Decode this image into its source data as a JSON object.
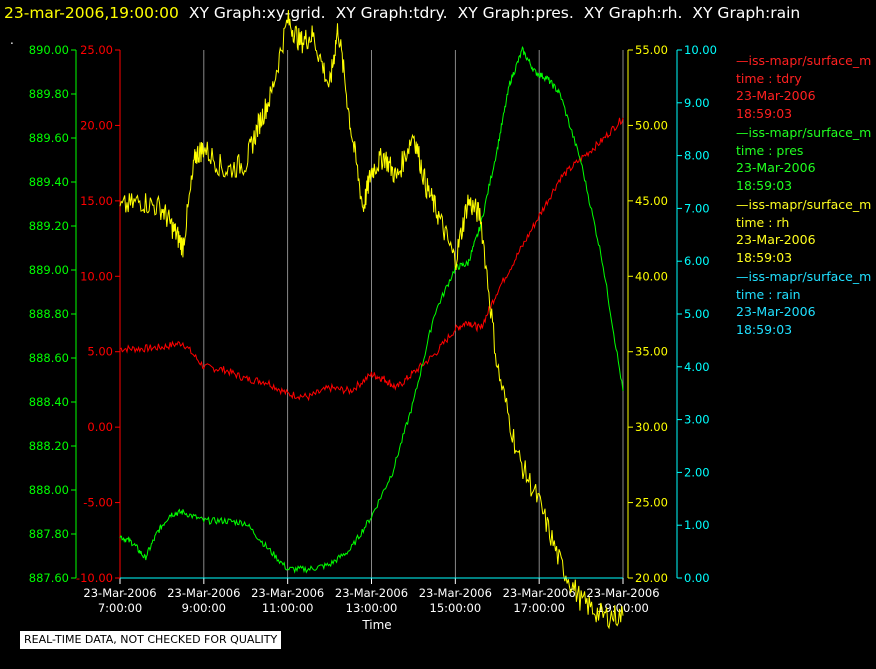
{
  "header": {
    "timestamp": "23-mar-2006,19:00:00",
    "graphs": [
      "XY Graph:xy-grid.",
      "XY Graph:tdry.",
      "XY Graph:pres.",
      "XY Graph:rh.",
      "XY Graph:rain"
    ],
    "dot": "."
  },
  "colors": {
    "tdry": "#ff0000",
    "pres": "#00ff00",
    "rh": "#ffff00",
    "rain": "#00ffff",
    "grid": "#ffffff"
  },
  "legend": [
    {
      "name": "iss-mapr/surface_m",
      "field": "time : tdry",
      "date": "23-Mar-2006",
      "time": "18:59:03",
      "color": "#ff2020"
    },
    {
      "name": "iss-mapr/surface_m",
      "field": "time : pres",
      "date": "23-Mar-2006",
      "time": "18:59:03",
      "color": "#20ff20"
    },
    {
      "name": "iss-mapr/surface_m",
      "field": "time : rh",
      "date": "23-Mar-2006",
      "time": "18:59:03",
      "color": "#ffff20"
    },
    {
      "name": "iss-mapr/surface_m",
      "field": "time : rain",
      "date": "23-Mar-2006",
      "time": "18:59:03",
      "color": "#20e0ff"
    }
  ],
  "quality_note": "REAL-TIME DATA, NOT CHECKED FOR QUALITY",
  "chart_data": {
    "type": "line",
    "xlabel": "Time",
    "x_ticks": [
      {
        "date": "23-Mar-2006",
        "time": "7:00:00",
        "h": 7
      },
      {
        "date": "23-Mar-2006",
        "time": "9:00:00",
        "h": 9
      },
      {
        "date": "23-Mar-2006",
        "time": "11:00:00",
        "h": 11
      },
      {
        "date": "23-Mar-2006",
        "time": "13:00:00",
        "h": 13
      },
      {
        "date": "23-Mar-2006",
        "time": "15:00:00",
        "h": 15
      },
      {
        "date": "23-Mar-2006",
        "time": "17:00:00",
        "h": 17
      },
      {
        "date": "23-Mar-2006",
        "time": "19:00:00",
        "h": 19
      }
    ],
    "xlim": [
      7,
      19
    ],
    "grid": true,
    "axes": {
      "pres": {
        "ticks": [
          "887.60",
          "887.80",
          "888.00",
          "888.20",
          "888.40",
          "888.60",
          "888.80",
          "889.00",
          "889.20",
          "889.40",
          "889.60",
          "889.80",
          "890.00"
        ],
        "range": [
          887.6,
          890.0
        ]
      },
      "tdry": {
        "ticks": [
          "-10.00",
          "-5.00",
          "0.00",
          "5.00",
          "10.00",
          "15.00",
          "20.00",
          "25.00"
        ],
        "range": [
          -10,
          25
        ]
      },
      "rh": {
        "ticks": [
          "20.00",
          "25.00",
          "30.00",
          "35.00",
          "40.00",
          "45.00",
          "50.00",
          "55.00"
        ],
        "range": [
          20,
          55
        ]
      },
      "rain": {
        "ticks": [
          "0.00",
          "1.00",
          "2.00",
          "3.00",
          "4.00",
          "5.00",
          "6.00",
          "7.00",
          "8.00",
          "9.00",
          "10.00"
        ],
        "range": [
          0,
          10
        ]
      }
    },
    "series": [
      {
        "key": "tdry",
        "x": [
          7,
          7.5,
          8,
          8.5,
          9,
          9.5,
          10,
          10.5,
          11,
          11.5,
          12,
          12.5,
          13,
          13.3,
          13.6,
          14,
          14.5,
          15,
          15.3,
          15.6,
          16,
          16.5,
          17,
          17.5,
          18,
          18.5,
          19
        ],
        "y": [
          5.2,
          5.2,
          5.3,
          5.6,
          4.0,
          3.8,
          3.2,
          3.0,
          2.2,
          2.0,
          2.6,
          2.4,
          3.5,
          3.2,
          2.6,
          3.6,
          4.8,
          6.5,
          7.0,
          6.5,
          9.0,
          11.5,
          14.0,
          16.5,
          17.8,
          19.0,
          20.5
        ]
      },
      {
        "key": "pres",
        "x": [
          7,
          7.3,
          7.6,
          7.9,
          8.2,
          8.5,
          9,
          9.5,
          10,
          10.5,
          11,
          11.5,
          12,
          12.5,
          13,
          13.5,
          14,
          14.5,
          15,
          15.3,
          15.6,
          16,
          16.3,
          16.6,
          16.9,
          17.2,
          17.5,
          18,
          18.5,
          19
        ],
        "y": [
          887.79,
          887.76,
          887.69,
          887.81,
          887.89,
          887.9,
          887.86,
          887.86,
          887.85,
          887.74,
          887.64,
          887.64,
          887.66,
          887.73,
          887.88,
          888.08,
          888.4,
          888.8,
          889.01,
          889.03,
          889.2,
          889.55,
          889.85,
          890.0,
          889.9,
          889.87,
          889.8,
          889.49,
          889.05,
          888.45
        ]
      },
      {
        "key": "rh",
        "x": [
          7,
          7.5,
          8,
          8.3,
          8.5,
          8.8,
          9,
          9.5,
          10,
          10.3,
          10.6,
          11,
          11.3,
          11.6,
          12,
          12.2,
          12.5,
          12.8,
          13,
          13.3,
          13.6,
          14,
          14.3,
          14.6,
          15,
          15.3,
          15.6,
          16,
          16.5,
          17,
          17.5,
          18,
          18.5,
          19
        ],
        "y": [
          44.5,
          45.0,
          44.5,
          43.0,
          42.0,
          48.0,
          48.5,
          47.0,
          47.5,
          50.0,
          52.0,
          57.0,
          55.5,
          56.0,
          52.5,
          56.5,
          50.0,
          44.5,
          47.0,
          48.0,
          46.5,
          49.5,
          46.0,
          44.0,
          41.0,
          45.0,
          44.0,
          34.0,
          28.0,
          25.0,
          21.0,
          18.5,
          17.5,
          17.5
        ]
      },
      {
        "key": "rain",
        "x": [
          7,
          19
        ],
        "y": [
          0,
          0
        ]
      }
    ]
  }
}
